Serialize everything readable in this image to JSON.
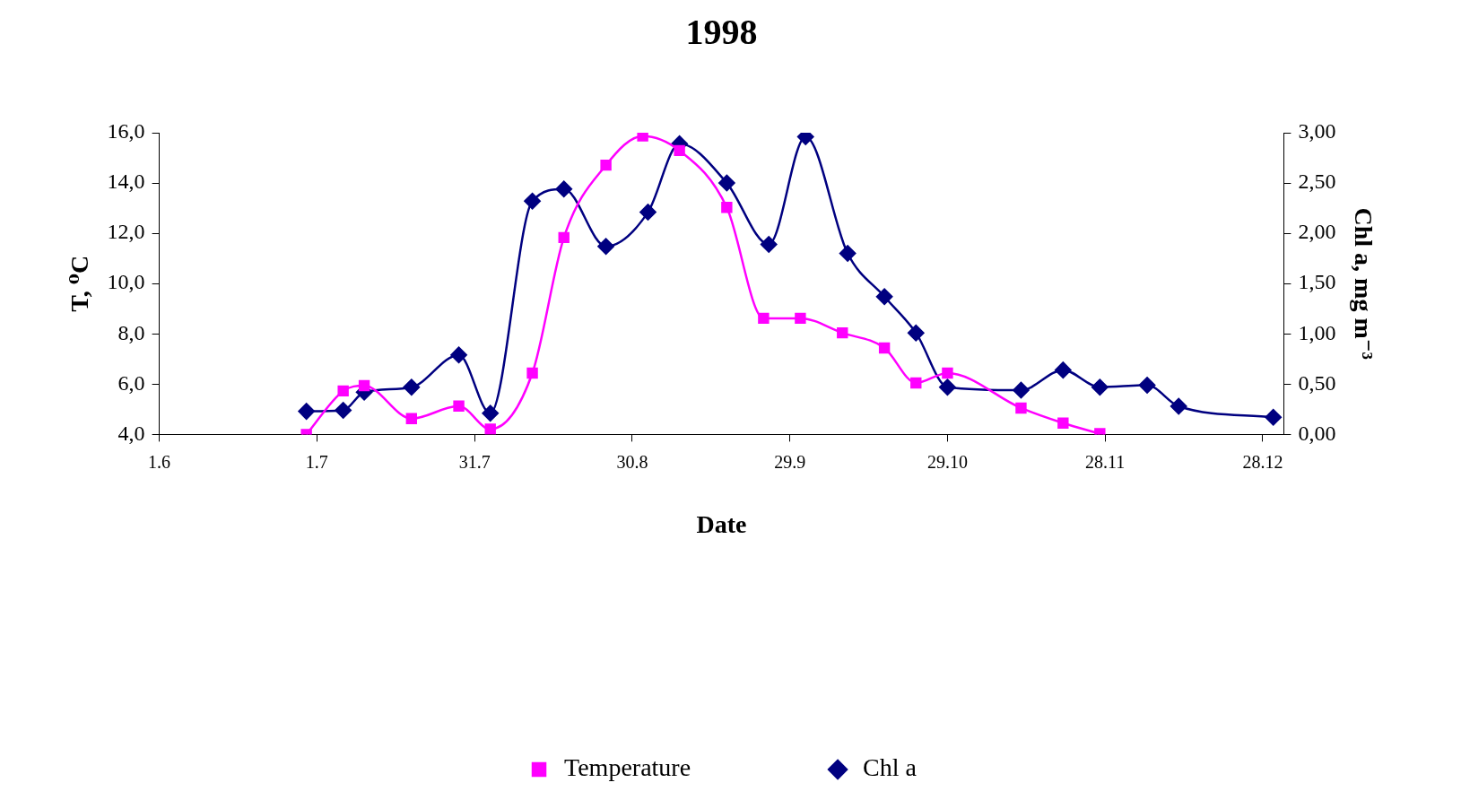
{
  "chart_data": {
    "type": "line",
    "title": "1998",
    "xlabel": "Date",
    "ylabel": "T, ⁰C",
    "y2label": "Chl a, mg m⁻³",
    "xlim": [
      "1998-06-01",
      "1999-01-01"
    ],
    "xticks": [
      {
        "value": "1998-06-01",
        "label": "1.6"
      },
      {
        "value": "1998-07-01",
        "label": "1.7"
      },
      {
        "value": "1998-07-31",
        "label": "31.7"
      },
      {
        "value": "1998-08-30",
        "label": "30.8"
      },
      {
        "value": "1998-09-29",
        "label": "29.9"
      },
      {
        "value": "1998-10-29",
        "label": "29.10"
      },
      {
        "value": "1998-11-28",
        "label": "28.11"
      },
      {
        "value": "1998-12-28",
        "label": "28.12"
      }
    ],
    "ylim": [
      4,
      16
    ],
    "yticks": [
      {
        "value": 4,
        "label": "4,0"
      },
      {
        "value": 6,
        "label": "6,0"
      },
      {
        "value": 8,
        "label": "8,0"
      },
      {
        "value": 10,
        "label": "10,0"
      },
      {
        "value": 12,
        "label": "12,0"
      },
      {
        "value": 14,
        "label": "14,0"
      },
      {
        "value": 16,
        "label": "16,0"
      }
    ],
    "y2lim": [
      0,
      3
    ],
    "y2ticks": [
      {
        "value": 0,
        "label": "0,00"
      },
      {
        "value": 0.5,
        "label": "0,50"
      },
      {
        "value": 1,
        "label": "1,00"
      },
      {
        "value": 1.5,
        "label": "1,50"
      },
      {
        "value": 2,
        "label": "2,00"
      },
      {
        "value": 2.5,
        "label": "2,50"
      },
      {
        "value": 3,
        "label": "3,00"
      }
    ],
    "grid": false,
    "legend": "bottom",
    "series": [
      {
        "name": "Temperature",
        "color": "#ff00ff",
        "marker": "square",
        "x": [
          "1998-06-29",
          "1998-07-06",
          "1998-07-10",
          "1998-07-19",
          "1998-07-28",
          "1998-08-03",
          "1998-08-11",
          "1998-08-17",
          "1998-08-25",
          "1998-09-01",
          "1998-09-08",
          "1998-09-17",
          "1998-09-24",
          "1998-10-01",
          "1998-10-09",
          "1998-10-17",
          "1998-10-23",
          "1998-10-29",
          "1998-11-12",
          "1998-11-20",
          "1998-11-27"
        ],
        "values": [
          4.0,
          5.73,
          5.94,
          4.63,
          5.13,
          4.21,
          6.44,
          11.83,
          14.71,
          15.87,
          15.29,
          13.03,
          8.62,
          8.62,
          8.04,
          7.44,
          6.05,
          6.44,
          5.05,
          4.45,
          4.03
        ]
      },
      {
        "name": "Chl a",
        "color": "#000080",
        "marker": "diamond",
        "axis": "y2",
        "x": [
          "1998-06-29",
          "1998-07-06",
          "1998-07-10",
          "1998-07-19",
          "1998-07-28",
          "1998-08-03",
          "1998-08-11",
          "1998-08-17",
          "1998-08-25",
          "1998-09-02",
          "1998-09-08",
          "1998-09-17",
          "1998-09-25",
          "1998-10-02",
          "1998-10-10",
          "1998-10-17",
          "1998-10-23",
          "1998-10-29",
          "1998-11-12",
          "1998-11-20",
          "1998-11-27",
          "1998-12-06",
          "1998-12-12",
          "1998-12-30"
        ],
        "values": [
          0.23,
          0.24,
          0.42,
          0.47,
          0.79,
          0.21,
          2.32,
          2.44,
          1.87,
          2.21,
          2.89,
          2.5,
          1.89,
          2.96,
          1.8,
          1.37,
          1.01,
          0.47,
          0.44,
          0.64,
          0.47,
          0.49,
          0.28,
          0.17
        ]
      }
    ]
  }
}
